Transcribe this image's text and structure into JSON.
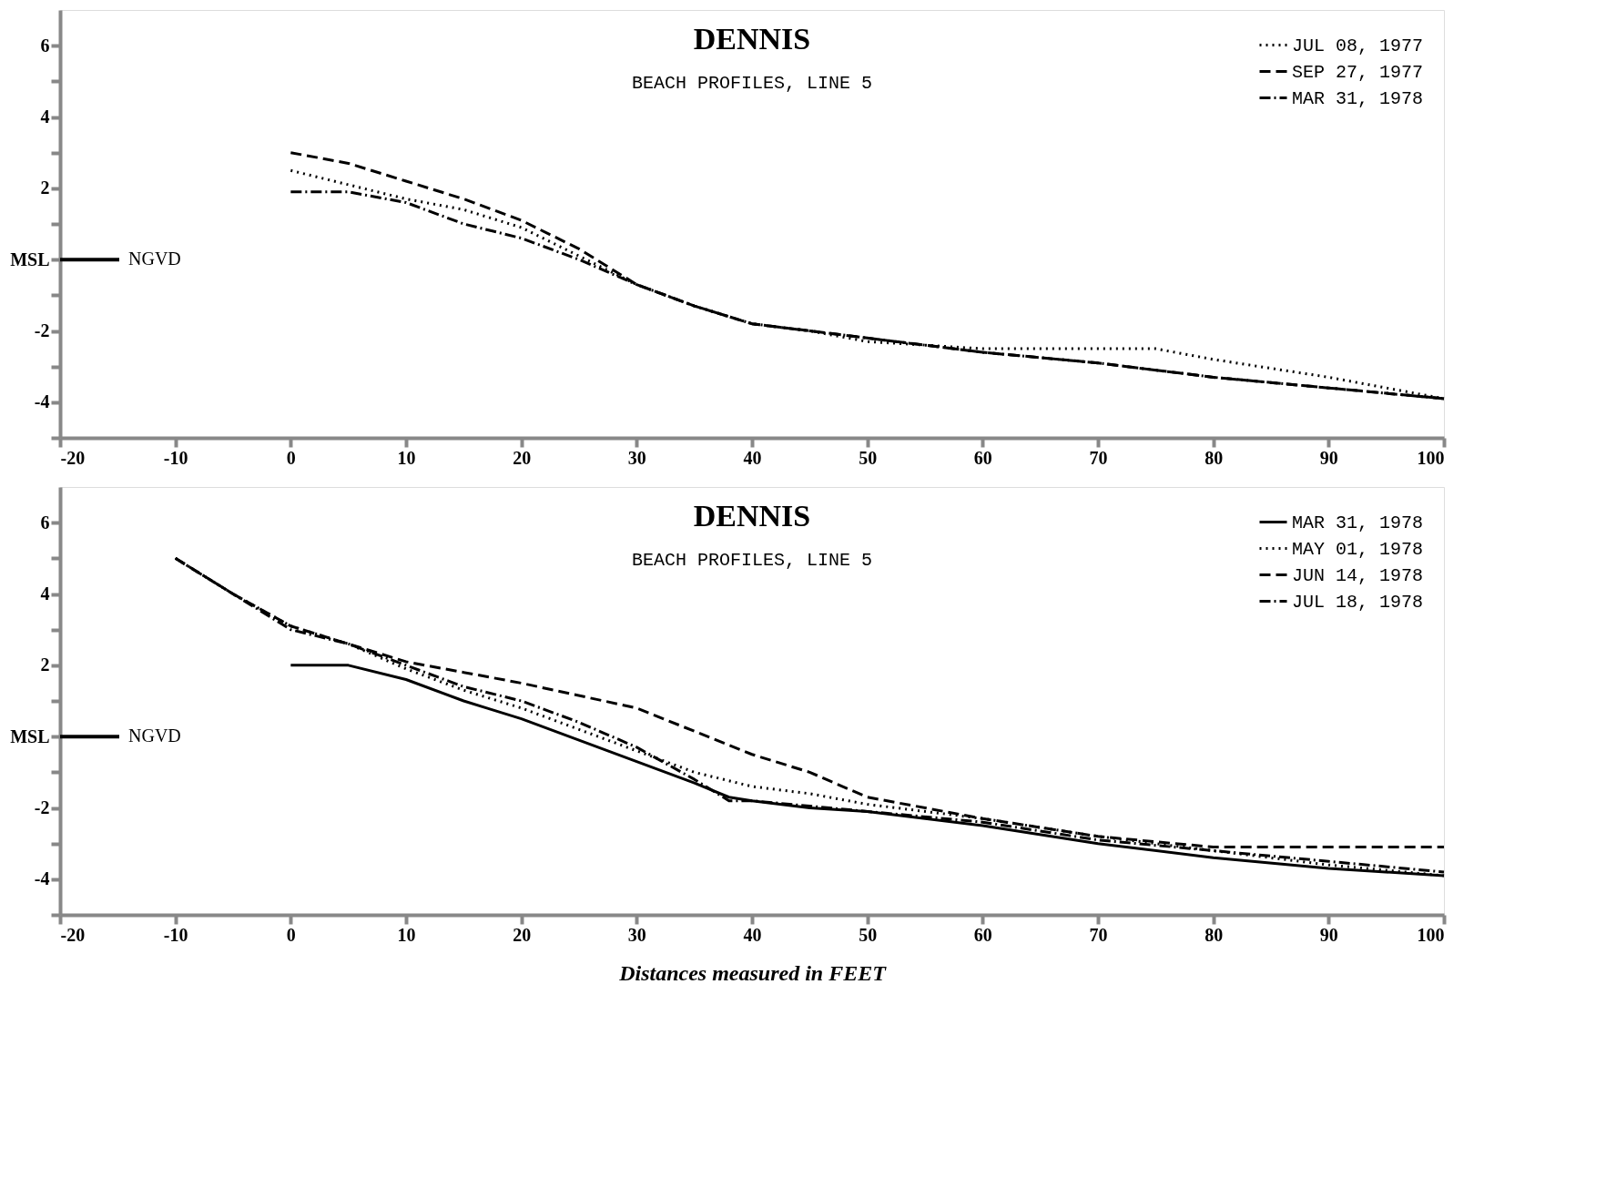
{
  "chart_data": [
    {
      "type": "line",
      "title": "DENNIS",
      "subtitle": "BEACH PROFILES, LINE 5",
      "xlim": [
        -20,
        100
      ],
      "xticks": [
        -20,
        -10,
        0,
        10,
        20,
        30,
        40,
        50,
        60,
        70,
        80,
        90,
        100
      ],
      "ylim": [
        -5,
        7
      ],
      "yticks": [
        {
          "value": -5,
          "label": null
        },
        -4,
        {
          "value": -3,
          "label": null
        },
        -2,
        {
          "value": -1,
          "label": null
        },
        {
          "value": 0,
          "label": "MSL"
        },
        {
          "value": 1,
          "label": null
        },
        2,
        {
          "value": 3,
          "label": null
        },
        4,
        {
          "value": 5,
          "label": null
        },
        6
      ],
      "grid": false,
      "legend": "top right",
      "ref_lines": [
        {
          "axis": "y",
          "value": 0,
          "label": "NGVD"
        }
      ],
      "series": [
        {
          "name": "JUL 08, 1977",
          "color": "#000000",
          "line_style": "dotted",
          "x": [
            0,
            5,
            10,
            15,
            20,
            25,
            30,
            35,
            40,
            45,
            50,
            60,
            70,
            75,
            80,
            90,
            100
          ],
          "values": [
            2.5,
            2.1,
            1.7,
            1.4,
            0.9,
            0.1,
            -0.7,
            -1.3,
            -1.8,
            -2.0,
            -2.3,
            -2.5,
            -2.5,
            -2.5,
            -2.8,
            -3.3,
            -3.9
          ]
        },
        {
          "name": "SEP 27, 1977",
          "color": "#000000",
          "line_style": "dashed",
          "x": [
            0,
            5,
            10,
            15,
            20,
            25,
            30,
            35,
            40,
            45,
            50,
            60,
            70,
            80,
            90,
            100
          ],
          "values": [
            3.0,
            2.7,
            2.2,
            1.7,
            1.1,
            0.3,
            -0.7,
            -1.3,
            -1.8,
            -2.0,
            -2.2,
            -2.6,
            -2.9,
            -3.3,
            -3.6,
            -3.9
          ]
        },
        {
          "name": "MAR 31, 1978",
          "color": "#000000",
          "line_style": "dashdot",
          "x": [
            0,
            5,
            10,
            15,
            20,
            25,
            30,
            35,
            40,
            45,
            50,
            60,
            70,
            80,
            90,
            100
          ],
          "values": [
            1.9,
            1.9,
            1.6,
            1.0,
            0.6,
            0.0,
            -0.7,
            -1.3,
            -1.8,
            -2.0,
            -2.2,
            -2.6,
            -2.9,
            -3.3,
            -3.6,
            -3.9
          ]
        }
      ]
    },
    {
      "type": "line",
      "title": "DENNIS",
      "subtitle": "BEACH PROFILES, LINE 5",
      "xlabel": "Distances measured in FEET",
      "xlim": [
        -20,
        100
      ],
      "xticks": [
        -20,
        -10,
        0,
        10,
        20,
        30,
        40,
        50,
        60,
        70,
        80,
        90,
        100
      ],
      "ylim": [
        -5,
        7
      ],
      "yticks": [
        {
          "value": -5,
          "label": null
        },
        -4,
        {
          "value": -3,
          "label": null
        },
        -2,
        {
          "value": -1,
          "label": null
        },
        {
          "value": 0,
          "label": "MSL"
        },
        {
          "value": 1,
          "label": null
        },
        2,
        {
          "value": 3,
          "label": null
        },
        4,
        {
          "value": 5,
          "label": null
        },
        6
      ],
      "grid": false,
      "legend": "top right",
      "ref_lines": [
        {
          "axis": "y",
          "value": 0,
          "label": "NGVD"
        }
      ],
      "series": [
        {
          "name": "MAR 31, 1978",
          "color": "#000000",
          "line_style": "solid",
          "x": [
            0,
            5,
            10,
            15,
            17,
            20,
            25,
            30,
            35,
            38,
            40,
            45,
            50,
            60,
            70,
            80,
            90,
            100
          ],
          "values": [
            2.0,
            2.0,
            1.6,
            1.0,
            0.8,
            0.5,
            -0.1,
            -0.7,
            -1.3,
            -1.7,
            -1.8,
            -2.0,
            -2.1,
            -2.5,
            -3.0,
            -3.4,
            -3.7,
            -3.9
          ]
        },
        {
          "name": "MAY 01, 1978",
          "color": "#000000",
          "line_style": "dotted",
          "x": [
            -10,
            -5,
            0,
            5,
            10,
            15,
            20,
            25,
            30,
            35,
            40,
            45,
            50,
            60,
            70,
            80,
            90,
            100
          ],
          "values": [
            5.0,
            4.0,
            3.1,
            2.6,
            1.9,
            1.3,
            0.8,
            0.2,
            -0.4,
            -1.0,
            -1.4,
            -1.6,
            -1.9,
            -2.3,
            -2.8,
            -3.2,
            -3.6,
            -3.9
          ]
        },
        {
          "name": "JUN 14, 1978",
          "color": "#000000",
          "line_style": "dashed",
          "x": [
            -10,
            -5,
            0,
            5,
            10,
            20,
            30,
            40,
            45,
            50,
            60,
            70,
            80,
            90,
            100
          ],
          "values": [
            5.0,
            4.0,
            3.1,
            2.6,
            2.1,
            1.5,
            0.8,
            -0.5,
            -1.0,
            -1.7,
            -2.3,
            -2.8,
            -3.1,
            -3.1,
            -3.1
          ]
        },
        {
          "name": "JUL 18, 1978",
          "color": "#000000",
          "line_style": "dashdot",
          "x": [
            -10,
            -5,
            0,
            5,
            10,
            15,
            20,
            25,
            30,
            35,
            38,
            40,
            50,
            60,
            70,
            80,
            90,
            100
          ],
          "values": [
            5.0,
            4.0,
            3.0,
            2.6,
            2.0,
            1.4,
            1.0,
            0.4,
            -0.3,
            -1.2,
            -1.8,
            -1.8,
            -2.1,
            -2.4,
            -2.9,
            -3.2,
            -3.5,
            -3.8
          ]
        }
      ]
    }
  ]
}
